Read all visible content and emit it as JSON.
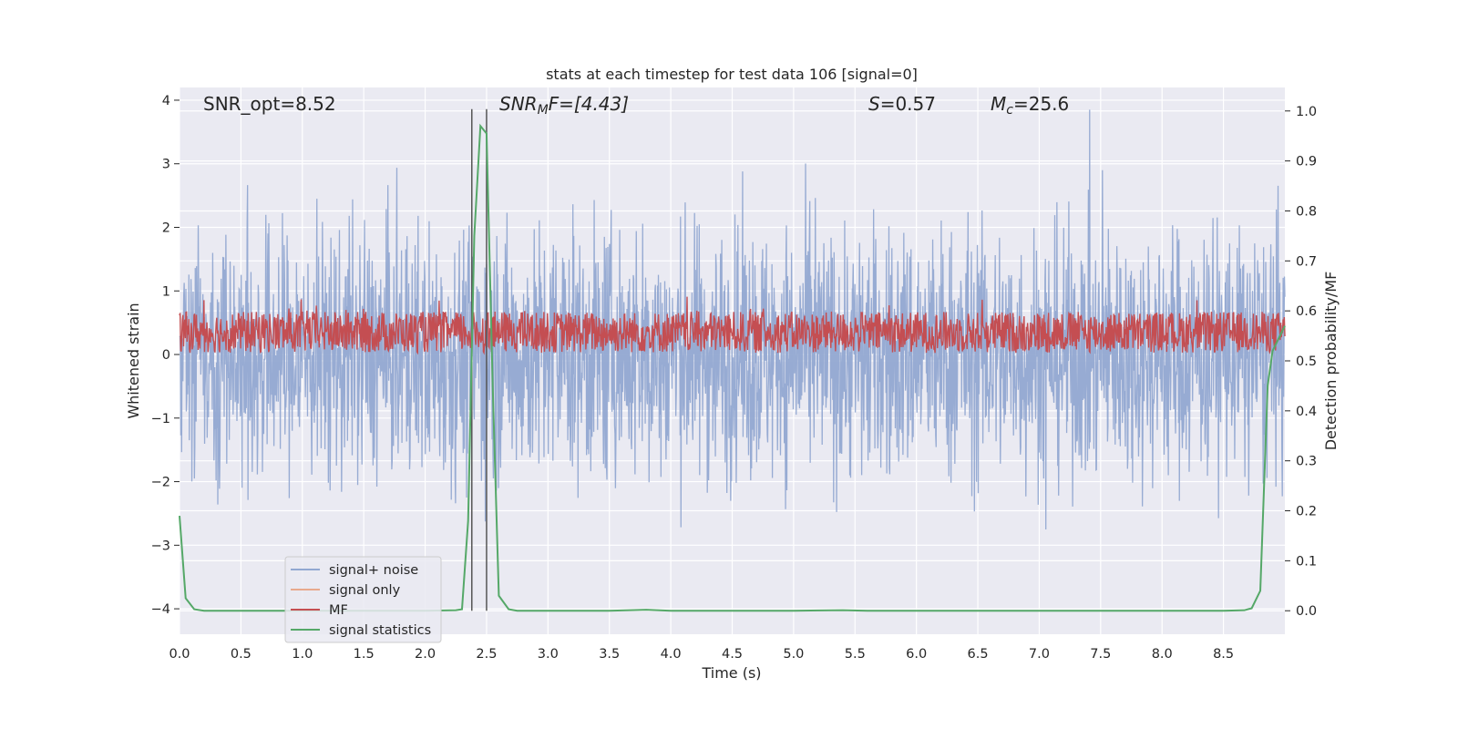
{
  "chart_data": {
    "type": "line",
    "title": "stats at each timestep for test data 106 [signal=0]",
    "xlabel": "Time (s)",
    "ylabel_left": "Whitened strain",
    "ylabel_right": "Detection probability/MF",
    "xlim": [
      0.0,
      9.0
    ],
    "ylim_left": [
      -4.4,
      4.2
    ],
    "ylim_right": [
      -0.047,
      1.047
    ],
    "x_ticks": [
      "0.0",
      "0.5",
      "1.0",
      "1.5",
      "2.0",
      "2.5",
      "3.0",
      "3.5",
      "4.0",
      "4.5",
      "5.0",
      "5.5",
      "6.0",
      "6.5",
      "7.0",
      "7.5",
      "8.0",
      "8.5"
    ],
    "y_ticks_left": [
      "−4",
      "−3",
      "−2",
      "−1",
      "0",
      "1",
      "2",
      "3",
      "4"
    ],
    "y_ticks_right": [
      "0.0",
      "0.1",
      "0.2",
      "0.3",
      "0.4",
      "0.5",
      "0.6",
      "0.7",
      "0.8",
      "0.9",
      "1.0"
    ],
    "grid": true,
    "annotations": {
      "snr_opt": "SNR_opt=8.52",
      "snr_mf_main": "SNR",
      "snr_mf_sub": "M",
      "snr_mf_rest": "F=[4.43]",
      "s_main": "S",
      "s_rest": "=0.57",
      "mc_main": "M",
      "mc_sub": "c",
      "mc_rest": "=25.6"
    },
    "vlines": [
      2.38,
      2.5
    ],
    "legend": {
      "placement": "lower-left",
      "entries": [
        {
          "label": "signal+ noise",
          "color": "#92a8d1"
        },
        {
          "label": "signal only",
          "color": "#e8a98d"
        },
        {
          "label": "MF",
          "color": "#c44e52"
        },
        {
          "label": "signal statistics",
          "color": "#55a868"
        }
      ]
    },
    "series": [
      {
        "name": "signal+ noise",
        "axis": "left",
        "color": "#92a8d1",
        "description": "whitened noise, roughly ±2 with spikes to ±3.8"
      },
      {
        "name": "MF",
        "axis": "left",
        "color": "#c44e52",
        "description": "matched filter output oscillating between 0 and ~0.8"
      },
      {
        "name": "signal statistics",
        "axis": "right",
        "color": "#55a868",
        "x": [
          0.0,
          0.05,
          0.12,
          0.2,
          0.5,
          1.0,
          1.5,
          2.0,
          2.25,
          2.3,
          2.35,
          2.4,
          2.45,
          2.5,
          2.55,
          2.6,
          2.68,
          2.75,
          3.0,
          3.5,
          3.8,
          4.0,
          4.5,
          5.0,
          5.4,
          5.6,
          6.0,
          6.5,
          7.0,
          7.5,
          8.0,
          8.5,
          8.67,
          8.73,
          8.8,
          8.86,
          8.9,
          9.0
        ],
        "y": [
          0.19,
          0.025,
          0.003,
          0.0,
          0.0,
          0.0,
          0.0,
          0.0,
          0.001,
          0.003,
          0.18,
          0.75,
          0.97,
          0.955,
          0.45,
          0.03,
          0.003,
          0.0,
          0.0,
          0.0,
          0.002,
          0.0,
          0.0,
          0.0,
          0.001,
          0.0,
          0.0,
          0.0,
          0.0,
          0.0,
          0.0,
          0.0,
          0.001,
          0.005,
          0.04,
          0.45,
          0.52,
          0.57
        ]
      }
    ],
    "colors": {
      "plot_bg": "#eaeaf2",
      "grid": "#ffffff",
      "vline": "#555555"
    }
  }
}
